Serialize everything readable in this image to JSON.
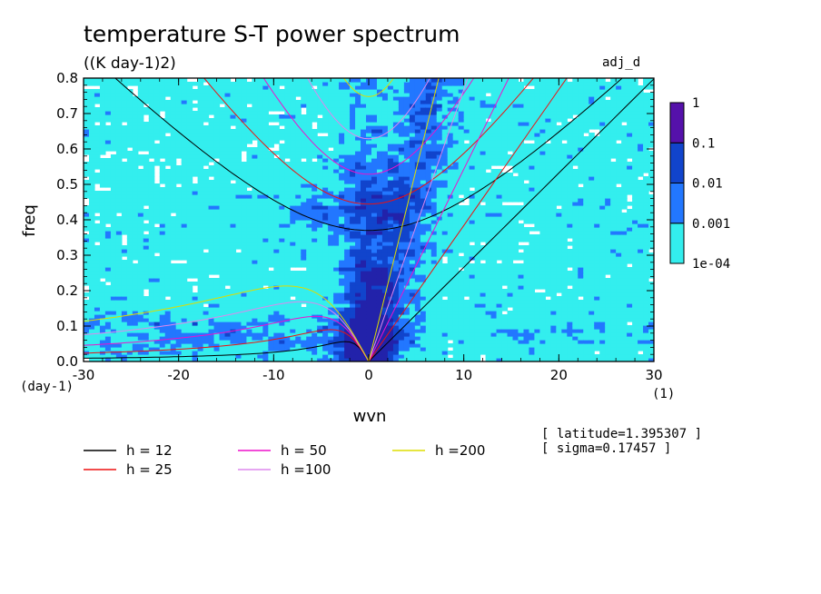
{
  "chart_data": {
    "type": "heatmap",
    "title": "temperature S-T power spectrum",
    "units": "((K day-1)2)",
    "tag": "adj_d",
    "xlabel": "wvn",
    "ylabel": "freq",
    "x_unit": "(1)",
    "y_unit": "(day-1)",
    "xlim": [
      -30,
      30
    ],
    "ylim": [
      0,
      0.8
    ],
    "x_ticks": [
      "-30",
      "-20",
      "-10",
      "0",
      "10",
      "20",
      "30"
    ],
    "y_ticks": [
      "0.0",
      "0.1",
      "0.2",
      "0.3",
      "0.4",
      "0.5",
      "0.6",
      "0.7",
      "0.8"
    ],
    "color_scale": {
      "levels": [
        "1e-04",
        "0.001",
        "0.01",
        "0.1",
        "1"
      ],
      "colors": [
        "#33eeee",
        "#2277ff",
        "#1144cc",
        "#2222aa",
        "#5511aa"
      ]
    },
    "series": [
      {
        "name": "h = 12",
        "color": "#000000"
      },
      {
        "name": "h = 25",
        "color": "#ee1111"
      },
      {
        "name": "h = 50",
        "color": "#ee11cc"
      },
      {
        "name": "h =100",
        "color": "#dd88ee"
      },
      {
        "name": "h =200",
        "color": "#dddd00"
      }
    ],
    "annotations": [
      "[ latitude=1.395307 ]",
      "[ sigma=0.17457 ]"
    ],
    "grid": false,
    "legend_position": "bottom-left"
  }
}
